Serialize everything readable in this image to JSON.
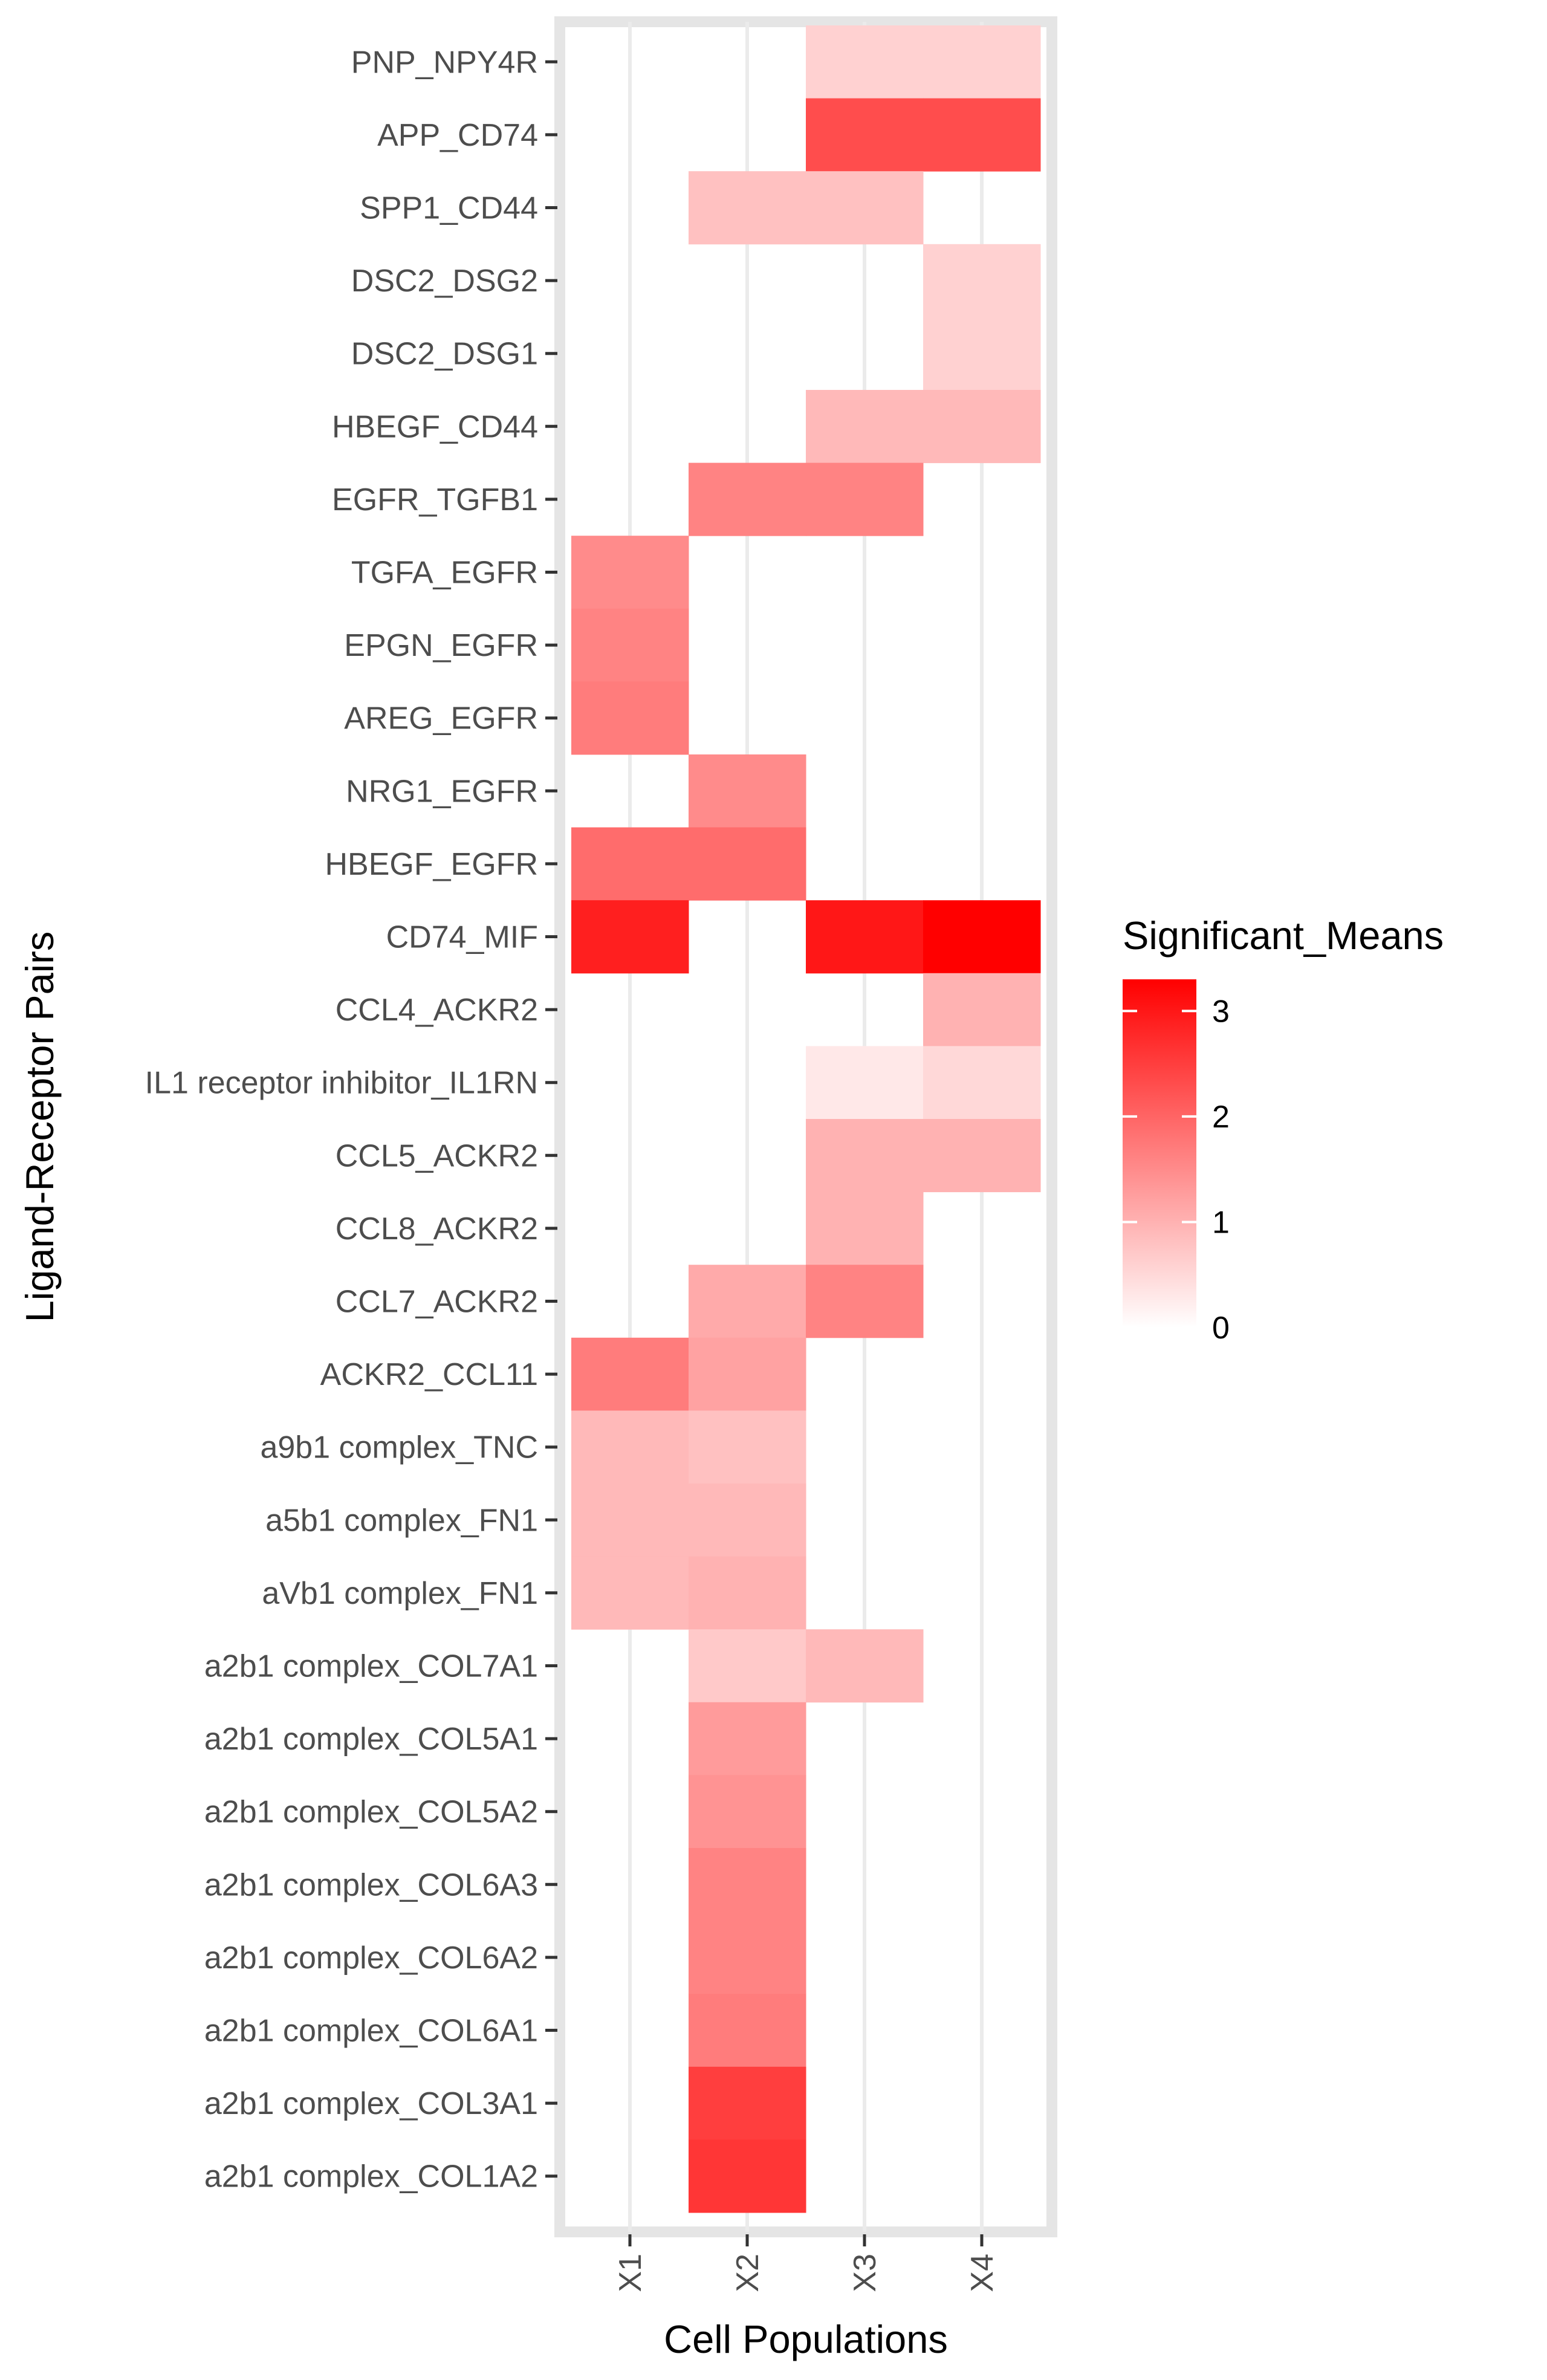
{
  "chart_data": {
    "type": "heatmap",
    "xlabel": "Cell Populations",
    "ylabel": "Ligand-Receptor Pairs",
    "x_categories": [
      "X1",
      "X2",
      "X3",
      "X4"
    ],
    "y_categories": [
      "PNP_NPY4R",
      "APP_CD74",
      "SPP1_CD44",
      "DSC2_DSG2",
      "DSC2_DSG1",
      "HBEGF_CD44",
      "EGFR_TGFB1",
      "TGFA_EGFR",
      "EPGN_EGFR",
      "AREG_EGFR",
      "NRG1_EGFR",
      "HBEGF_EGFR",
      "CD74_MIF",
      "CCL4_ACKR2",
      "IL1 receptor inhibitor_IL1RN",
      "CCL5_ACKR2",
      "CCL8_ACKR2",
      "CCL7_ACKR2",
      "ACKR2_CCL11",
      "a9b1 complex_TNC",
      "a5b1 complex_FN1",
      "aVb1 complex_FN1",
      "a2b1 complex_COL7A1",
      "a2b1 complex_COL5A1",
      "a2b1 complex_COL5A2",
      "a2b1 complex_COL6A3",
      "a2b1 complex_COL6A2",
      "a2b1 complex_COL6A1",
      "a2b1 complex_COL3A1",
      "a2b1 complex_COL1A2"
    ],
    "values": [
      [
        null,
        null,
        0.6,
        0.6
      ],
      [
        null,
        null,
        2.3,
        2.3
      ],
      [
        null,
        0.8,
        0.8,
        null
      ],
      [
        null,
        null,
        null,
        0.6
      ],
      [
        null,
        null,
        null,
        0.6
      ],
      [
        null,
        null,
        0.9,
        0.9
      ],
      [
        null,
        1.6,
        1.6,
        null
      ],
      [
        1.5,
        null,
        null,
        null
      ],
      [
        1.6,
        null,
        null,
        null
      ],
      [
        1.7,
        null,
        null,
        null
      ],
      [
        null,
        1.5,
        null,
        null
      ],
      [
        1.9,
        1.9,
        null,
        null
      ],
      [
        2.9,
        null,
        3.0,
        3.3
      ],
      [
        null,
        null,
        null,
        1.0
      ],
      [
        null,
        null,
        0.3,
        0.5
      ],
      [
        null,
        null,
        1.0,
        1.0
      ],
      [
        null,
        null,
        1.0,
        null
      ],
      [
        null,
        1.1,
        1.6,
        null
      ],
      [
        1.7,
        1.2,
        null,
        null
      ],
      [
        0.9,
        0.8,
        null,
        null
      ],
      [
        0.9,
        0.9,
        null,
        null
      ],
      [
        0.9,
        1.0,
        null,
        null
      ],
      [
        null,
        0.7,
        0.9,
        null
      ],
      [
        null,
        1.3,
        null,
        null
      ],
      [
        null,
        1.4,
        null,
        null
      ],
      [
        null,
        1.6,
        null,
        null
      ],
      [
        null,
        1.6,
        null,
        null
      ],
      [
        null,
        1.7,
        null,
        null
      ],
      [
        null,
        2.5,
        null,
        null
      ],
      [
        null,
        2.6,
        null,
        null
      ]
    ],
    "legend": {
      "title": "Significant_Means",
      "ticks": [
        0,
        1,
        2,
        3
      ],
      "range": [
        0,
        3.3
      ],
      "placement": "right",
      "low_color": "#ffffff",
      "high_color": "#ff0000"
    },
    "panel_background": "#ffffff",
    "panel_border_color": "#e5e5e5"
  }
}
